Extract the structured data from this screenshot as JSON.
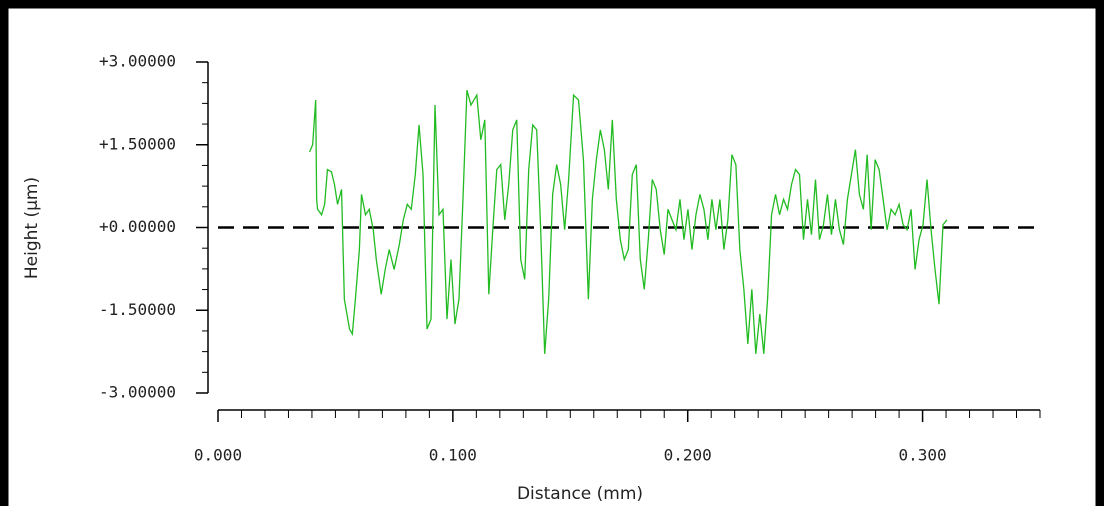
{
  "chart_data": {
    "type": "line",
    "xlabel": "Distance (mm)",
    "ylabel": "Height (µm)",
    "xlim": [
      0,
      0.35
    ],
    "ylim": [
      -3,
      3
    ],
    "xticks": [
      {
        "value": 0,
        "label": "0.000"
      },
      {
        "value": 0.1,
        "label": "0.100"
      },
      {
        "value": 0.2,
        "label": "0.200"
      },
      {
        "value": 0.3,
        "label": "0.300"
      }
    ],
    "yticks": [
      {
        "value": 3,
        "label": "+3.00000"
      },
      {
        "value": 1.5,
        "label": "+1.50000"
      },
      {
        "value": 0,
        "label": "+0.00000"
      },
      {
        "value": -1.5,
        "label": "-1.50000"
      },
      {
        "value": -3,
        "label": "-3.00000"
      }
    ],
    "xminorticks": [
      0.01,
      0.02,
      0.03,
      0.04,
      0.05,
      0.06,
      0.07,
      0.08,
      0.09,
      0.11,
      0.12,
      0.13,
      0.14,
      0.15,
      0.16,
      0.17,
      0.18,
      0.19,
      0.21,
      0.22,
      0.23,
      0.24,
      0.25,
      0.26,
      0.27,
      0.28,
      0.29,
      0.31,
      0.32,
      0.33,
      0.34,
      0.35
    ],
    "yminorticks": [
      2.625,
      2.25,
      1.875,
      1.125,
      0.75,
      0.375,
      -0.375,
      -0.75,
      -1.125,
      -1.875,
      -2.25,
      -2.625
    ],
    "hline": 0,
    "x": [
      0.039,
      0.0403,
      0.0416,
      0.042,
      0.0424,
      0.0441,
      0.0454,
      0.0466,
      0.0483,
      0.0496,
      0.0509,
      0.0526,
      0.0538,
      0.056,
      0.0572,
      0.0585,
      0.0602,
      0.0611,
      0.0628,
      0.0644,
      0.0661,
      0.0674,
      0.0695,
      0.0712,
      0.0729,
      0.075,
      0.0772,
      0.0789,
      0.0806,
      0.0823,
      0.084,
      0.0856,
      0.0873,
      0.089,
      0.0907,
      0.0924,
      0.0941,
      0.0958,
      0.0975,
      0.0992,
      0.1009,
      0.1026,
      0.1043,
      0.106,
      0.1077,
      0.1102,
      0.1119,
      0.1136,
      0.1153,
      0.117,
      0.1187,
      0.1204,
      0.1221,
      0.1238,
      0.1255,
      0.1272,
      0.1289,
      0.1306,
      0.1323,
      0.134,
      0.1357,
      0.1374,
      0.1391,
      0.1408,
      0.1425,
      0.1442,
      0.1459,
      0.1476,
      0.1493,
      0.1514,
      0.1535,
      0.1556,
      0.1577,
      0.1594,
      0.1611,
      0.1628,
      0.1645,
      0.1662,
      0.1679,
      0.1696,
      0.1713,
      0.173,
      0.1747,
      0.1764,
      0.1781,
      0.1798,
      0.1815,
      0.1832,
      0.1849,
      0.1866,
      0.1883,
      0.19,
      0.1916,
      0.1933,
      0.195,
      0.1967,
      0.1984,
      0.2001,
      0.2018,
      0.2035,
      0.2052,
      0.2069,
      0.2086,
      0.2103,
      0.212,
      0.2137,
      0.2154,
      0.2171,
      0.2188,
      0.2205,
      0.2222,
      0.2239,
      0.2256,
      0.2273,
      0.229,
      0.2307,
      0.2324,
      0.234,
      0.2357,
      0.2374,
      0.2391,
      0.2408,
      0.2425,
      0.2442,
      0.2459,
      0.2476,
      0.2493,
      0.251,
      0.2527,
      0.2544,
      0.2561,
      0.2578,
      0.2595,
      0.2612,
      0.2629,
      0.2646,
      0.2663,
      0.268,
      0.2697,
      0.2714,
      0.2731,
      0.2748,
      0.2764,
      0.2781,
      0.2798,
      0.2815,
      0.2832,
      0.2849,
      0.2866,
      0.2883,
      0.29,
      0.2917,
      0.2934,
      0.2951,
      0.2968,
      0.2985,
      0.3002,
      0.3019,
      0.3036,
      0.3053,
      0.307,
      0.3087,
      0.3104
    ],
    "series": [
      {
        "color": "#22bb22",
        "values": [
          1.37,
          1.5,
          2.31,
          0.51,
          0.33,
          0.23,
          0.42,
          1.05,
          1.01,
          0.78,
          0.42,
          0.69,
          -1.3,
          -1.84,
          -1.93,
          -1.3,
          -0.4,
          0.6,
          0.23,
          0.33,
          -0.04,
          -0.58,
          -1.21,
          -0.76,
          -0.4,
          -0.76,
          -0.31,
          0.14,
          0.42,
          0.33,
          0.96,
          1.86,
          0.96,
          -1.84,
          -1.66,
          2.22,
          0.23,
          0.33,
          -1.66,
          -0.58,
          -1.75,
          -1.3,
          0.51,
          2.49,
          2.22,
          2.4,
          1.59,
          1.95,
          -1.21,
          -0.04,
          1.05,
          1.14,
          0.14,
          0.78,
          1.77,
          1.95,
          -0.58,
          -0.94,
          1.05,
          1.86,
          1.77,
          -0.04,
          -2.29,
          -1.3,
          0.6,
          1.14,
          0.78,
          -0.04,
          0.87,
          2.4,
          2.31,
          1.23,
          -1.3,
          0.51,
          1.23,
          1.77,
          1.41,
          0.69,
          1.95,
          0.51,
          -0.22,
          -0.58,
          -0.4,
          0.96,
          1.14,
          -0.58,
          -1.12,
          -0.22,
          0.87,
          0.69,
          -0.04,
          -0.49,
          0.33,
          0.14,
          -0.04,
          0.51,
          -0.22,
          0.33,
          -0.4,
          0.23,
          0.6,
          0.33,
          -0.22,
          0.51,
          -0.04,
          0.51,
          -0.4,
          0.14,
          1.32,
          1.14,
          -0.4,
          -1.12,
          -2.11,
          -1.12,
          -2.29,
          -1.57,
          -2.29,
          -1.3,
          0.23,
          0.6,
          0.23,
          0.51,
          0.33,
          0.78,
          1.05,
          0.96,
          -0.22,
          0.51,
          -0.13,
          0.87,
          -0.22,
          0.05,
          0.6,
          -0.13,
          0.51,
          -0.04,
          -0.31,
          0.51,
          0.96,
          1.41,
          0.6,
          0.33,
          1.32,
          -0.04,
          1.23,
          1.05,
          0.51,
          -0.04,
          0.33,
          0.23,
          0.42,
          0.05,
          -0.04,
          0.33,
          -0.76,
          -0.22,
          0.05,
          0.87,
          -0.04,
          -0.76,
          -1.39,
          0.05,
          0.14
        ]
      }
    ]
  }
}
